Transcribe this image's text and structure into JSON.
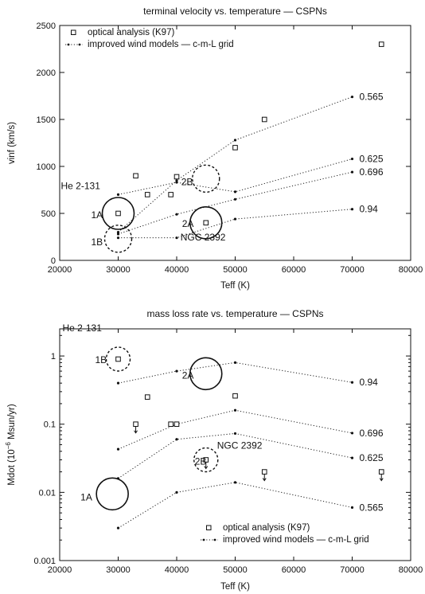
{
  "chart_data": [
    {
      "type": "scatter",
      "title": "terminal velocity vs. temperature — CSPNs",
      "xlabel": "Teff (K)",
      "ylabel": "vinf (km/s)",
      "xlim": [
        20000,
        80000
      ],
      "ylim": [
        0,
        2500
      ],
      "yscale": "linear",
      "grid": false,
      "legend_position": "top-left",
      "x_ticks": [
        20000,
        30000,
        40000,
        50000,
        60000,
        70000,
        80000
      ],
      "x_tick_labels": [
        "20000",
        "30000",
        "40000",
        "50000",
        "60000",
        "70000",
        "80000"
      ],
      "y_ticks": [
        0,
        500,
        1000,
        1500,
        2000,
        2500
      ],
      "y_tick_labels": [
        "0",
        "500",
        "1000",
        "1500",
        "2000",
        "2500"
      ],
      "series": [
        {
          "name": "optical analysis (K97)",
          "marker": "open-square",
          "points": [
            {
              "x": 30000,
              "y": 500
            },
            {
              "x": 33000,
              "y": 900
            },
            {
              "x": 35000,
              "y": 700
            },
            {
              "x": 39000,
              "y": 700
            },
            {
              "x": 40000,
              "y": 890
            },
            {
              "x": 45000,
              "y": 400
            },
            {
              "x": 50000,
              "y": 1200
            },
            {
              "x": 55000,
              "y": 1500
            },
            {
              "x": 75000,
              "y": 2300
            }
          ]
        },
        {
          "name": "improved wind models — c-m-L grid",
          "marker": "dot-dotted-line",
          "tracks": [
            {
              "label": "0.565",
              "points": [
                {
                  "x": 30000,
                  "y": 300
                },
                {
                  "x": 40000,
                  "y": 850
                },
                {
                  "x": 50000,
                  "y": 1280
                },
                {
                  "x": 70000,
                  "y": 1740
                }
              ]
            },
            {
              "label": "0.625",
              "points": [
                {
                  "x": 30000,
                  "y": 700
                },
                {
                  "x": 40000,
                  "y": 830
                },
                {
                  "x": 50000,
                  "y": 730
                },
                {
                  "x": 70000,
                  "y": 1080
                }
              ]
            },
            {
              "label": "0.696",
              "points": [
                {
                  "x": 30000,
                  "y": 280
                },
                {
                  "x": 40000,
                  "y": 490
                },
                {
                  "x": 50000,
                  "y": 650
                },
                {
                  "x": 70000,
                  "y": 940
                }
              ]
            },
            {
              "label": "0.94",
              "points": [
                {
                  "x": 30000,
                  "y": 240
                },
                {
                  "x": 40000,
                  "y": 240
                },
                {
                  "x": 50000,
                  "y": 440
                },
                {
                  "x": 70000,
                  "y": 545
                }
              ]
            }
          ]
        }
      ],
      "annotations": [
        {
          "text": "He 2-131",
          "x": 30000,
          "y": 650,
          "circle": "none"
        },
        {
          "text": "1A",
          "x": 30000,
          "y": 500,
          "circle": "solid"
        },
        {
          "text": "1B",
          "x": 30000,
          "y": 230,
          "circle": "dashed"
        },
        {
          "text": "2A",
          "x": 45000,
          "y": 400,
          "circle": "solid"
        },
        {
          "text": "2B",
          "x": 45000,
          "y": 870,
          "circle": "dashed"
        },
        {
          "text": "NGC 2392",
          "x": 45000,
          "y": 400,
          "circle": "none"
        }
      ]
    },
    {
      "type": "scatter",
      "title": "mass loss rate vs. temperature — CSPNs",
      "xlabel": "Teff (K)",
      "ylabel": "Mdot (10",
      "ylabel_sup": "−6",
      "ylabel_unit": " Msun/yr)",
      "xlim": [
        20000,
        80000
      ],
      "ylim": [
        0.001,
        2.5
      ],
      "yscale": "log",
      "grid": false,
      "legend_position": "bottom-right",
      "x_ticks": [
        20000,
        30000,
        40000,
        50000,
        60000,
        70000,
        80000
      ],
      "x_tick_labels": [
        "20000",
        "30000",
        "40000",
        "50000",
        "60000",
        "70000",
        "80000"
      ],
      "y_ticks": [
        0.001,
        0.01,
        0.1,
        1
      ],
      "y_tick_labels": [
        "0.001",
        "0.01",
        "0.1",
        "1"
      ],
      "series": [
        {
          "name": "optical analysis (K97)",
          "marker": "open-square",
          "points": [
            {
              "x": 30000,
              "y": 0.9
            },
            {
              "x": 33000,
              "y": 0.1,
              "upper_limit": true
            },
            {
              "x": 35000,
              "y": 0.25
            },
            {
              "x": 39000,
              "y": 0.1
            },
            {
              "x": 40000,
              "y": 0.1
            },
            {
              "x": 45000,
              "y": 0.03,
              "upper_limit": true
            },
            {
              "x": 50000,
              "y": 0.26
            },
            {
              "x": 55000,
              "y": 0.02,
              "upper_limit": true
            },
            {
              "x": 75000,
              "y": 0.02,
              "upper_limit": true
            }
          ]
        },
        {
          "name": "improved wind models — c-m-L grid",
          "marker": "dot-dotted-line",
          "tracks": [
            {
              "label": "0.94",
              "points": [
                {
                  "x": 30000,
                  "y": 0.4
                },
                {
                  "x": 40000,
                  "y": 0.6
                },
                {
                  "x": 50000,
                  "y": 0.8
                },
                {
                  "x": 70000,
                  "y": 0.41
                }
              ]
            },
            {
              "label": "0.696",
              "points": [
                {
                  "x": 30000,
                  "y": 0.043
                },
                {
                  "x": 40000,
                  "y": 0.1
                },
                {
                  "x": 50000,
                  "y": 0.16
                },
                {
                  "x": 70000,
                  "y": 0.074
                }
              ]
            },
            {
              "label": "0.625",
              "points": [
                {
                  "x": 30000,
                  "y": 0.016
                },
                {
                  "x": 40000,
                  "y": 0.06
                },
                {
                  "x": 50000,
                  "y": 0.073
                },
                {
                  "x": 70000,
                  "y": 0.032
                }
              ]
            },
            {
              "label": "0.565",
              "points": [
                {
                  "x": 30000,
                  "y": 0.003
                },
                {
                  "x": 40000,
                  "y": 0.01
                },
                {
                  "x": 50000,
                  "y": 0.014
                },
                {
                  "x": 70000,
                  "y": 0.006
                }
              ]
            }
          ]
        }
      ],
      "annotations": [
        {
          "text": "He 2-131",
          "x": 30000,
          "y": 1.5,
          "circle": "none"
        },
        {
          "text": "1B",
          "x": 30000,
          "y": 0.9,
          "circle": "dashed"
        },
        {
          "text": "2A",
          "x": 45000,
          "y": 0.55,
          "circle": "solid"
        },
        {
          "text": "NGC 2392",
          "x": 45000,
          "y": 0.03,
          "circle": "none"
        },
        {
          "text": "2B",
          "x": 45000,
          "y": 0.03,
          "circle": "dashed"
        },
        {
          "text": "1A",
          "x": 29000,
          "y": 0.0095,
          "circle": "solid"
        }
      ]
    }
  ]
}
